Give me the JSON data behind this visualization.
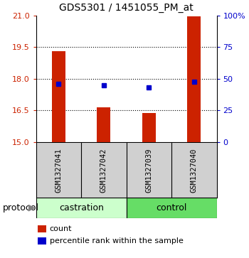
{
  "title": "GDS5301 / 1451055_PM_at",
  "samples": [
    "GSM1327041",
    "GSM1327042",
    "GSM1327039",
    "GSM1327040"
  ],
  "bar_values": [
    19.3,
    16.65,
    16.38,
    20.95
  ],
  "bar_bottom": 15.0,
  "dot_values": [
    17.77,
    17.68,
    17.6,
    17.85
  ],
  "bar_color": "#cc2200",
  "dot_color": "#0000cc",
  "ylim_left": [
    15,
    21
  ],
  "yticks_left": [
    15,
    16.5,
    18,
    19.5,
    21
  ],
  "ylim_right": [
    0,
    100
  ],
  "yticks_right": [
    0,
    25,
    50,
    75,
    100
  ],
  "ytick_labels_right": [
    "0",
    "25",
    "50",
    "75",
    "100%"
  ],
  "group_label": "protocol",
  "castration_color": "#ccffcc",
  "control_color": "#66dd66",
  "sample_box_color": "#d0d0d0",
  "grid_yticks": [
    16.5,
    18,
    19.5
  ],
  "bar_width": 0.3
}
